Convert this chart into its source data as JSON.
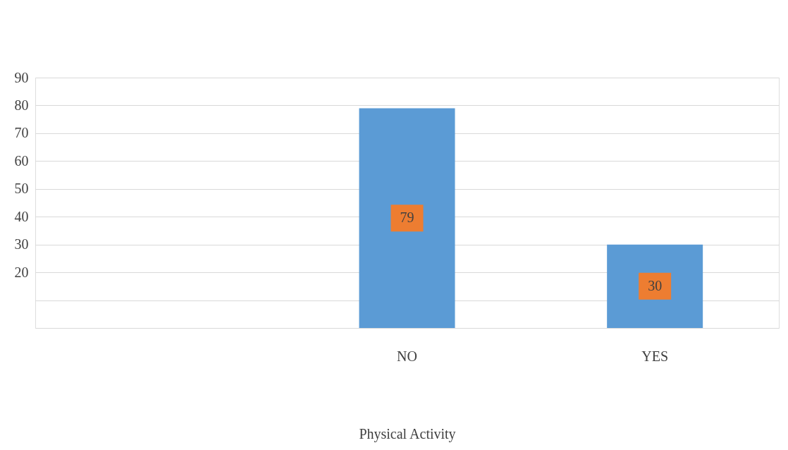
{
  "chart_data": {
    "type": "bar",
    "xlabel": "Physical Activity",
    "categories": [
      null,
      "NO",
      "YES"
    ],
    "values": [
      null,
      79,
      30
    ],
    "color": "#5b9bd5",
    "data_labels": true,
    "ylim": [
      0,
      90
    ],
    "yticks": [
      {
        "value": 0,
        "label": null
      },
      {
        "value": 10,
        "label": null
      },
      20,
      30,
      40,
      50,
      60,
      70,
      80,
      90
    ],
    "grid": "y"
  }
}
